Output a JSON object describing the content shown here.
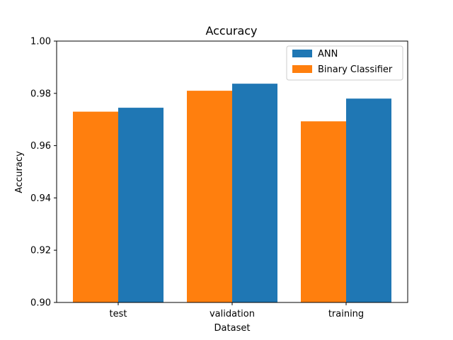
{
  "chart_data": {
    "type": "bar",
    "title": "Accuracy",
    "xlabel": "Dataset",
    "ylabel": "Accuracy",
    "categories": [
      "test",
      "validation",
      "training"
    ],
    "series": [
      {
        "name": "Binary Classifier",
        "color": "#ff7f0e",
        "values": [
          0.973,
          0.981,
          0.9693
        ]
      },
      {
        "name": "ANN",
        "color": "#1f77b4",
        "values": [
          0.9745,
          0.9837,
          0.978
        ]
      }
    ],
    "ylim": [
      0.9,
      1.0
    ],
    "yticks": [
      "0.90",
      "0.92",
      "0.94",
      "0.96",
      "0.98",
      "1.00"
    ],
    "grid": false,
    "legend": {
      "placement": "top-right",
      "entries": [
        "ANN",
        "Binary Classifier"
      ]
    }
  }
}
